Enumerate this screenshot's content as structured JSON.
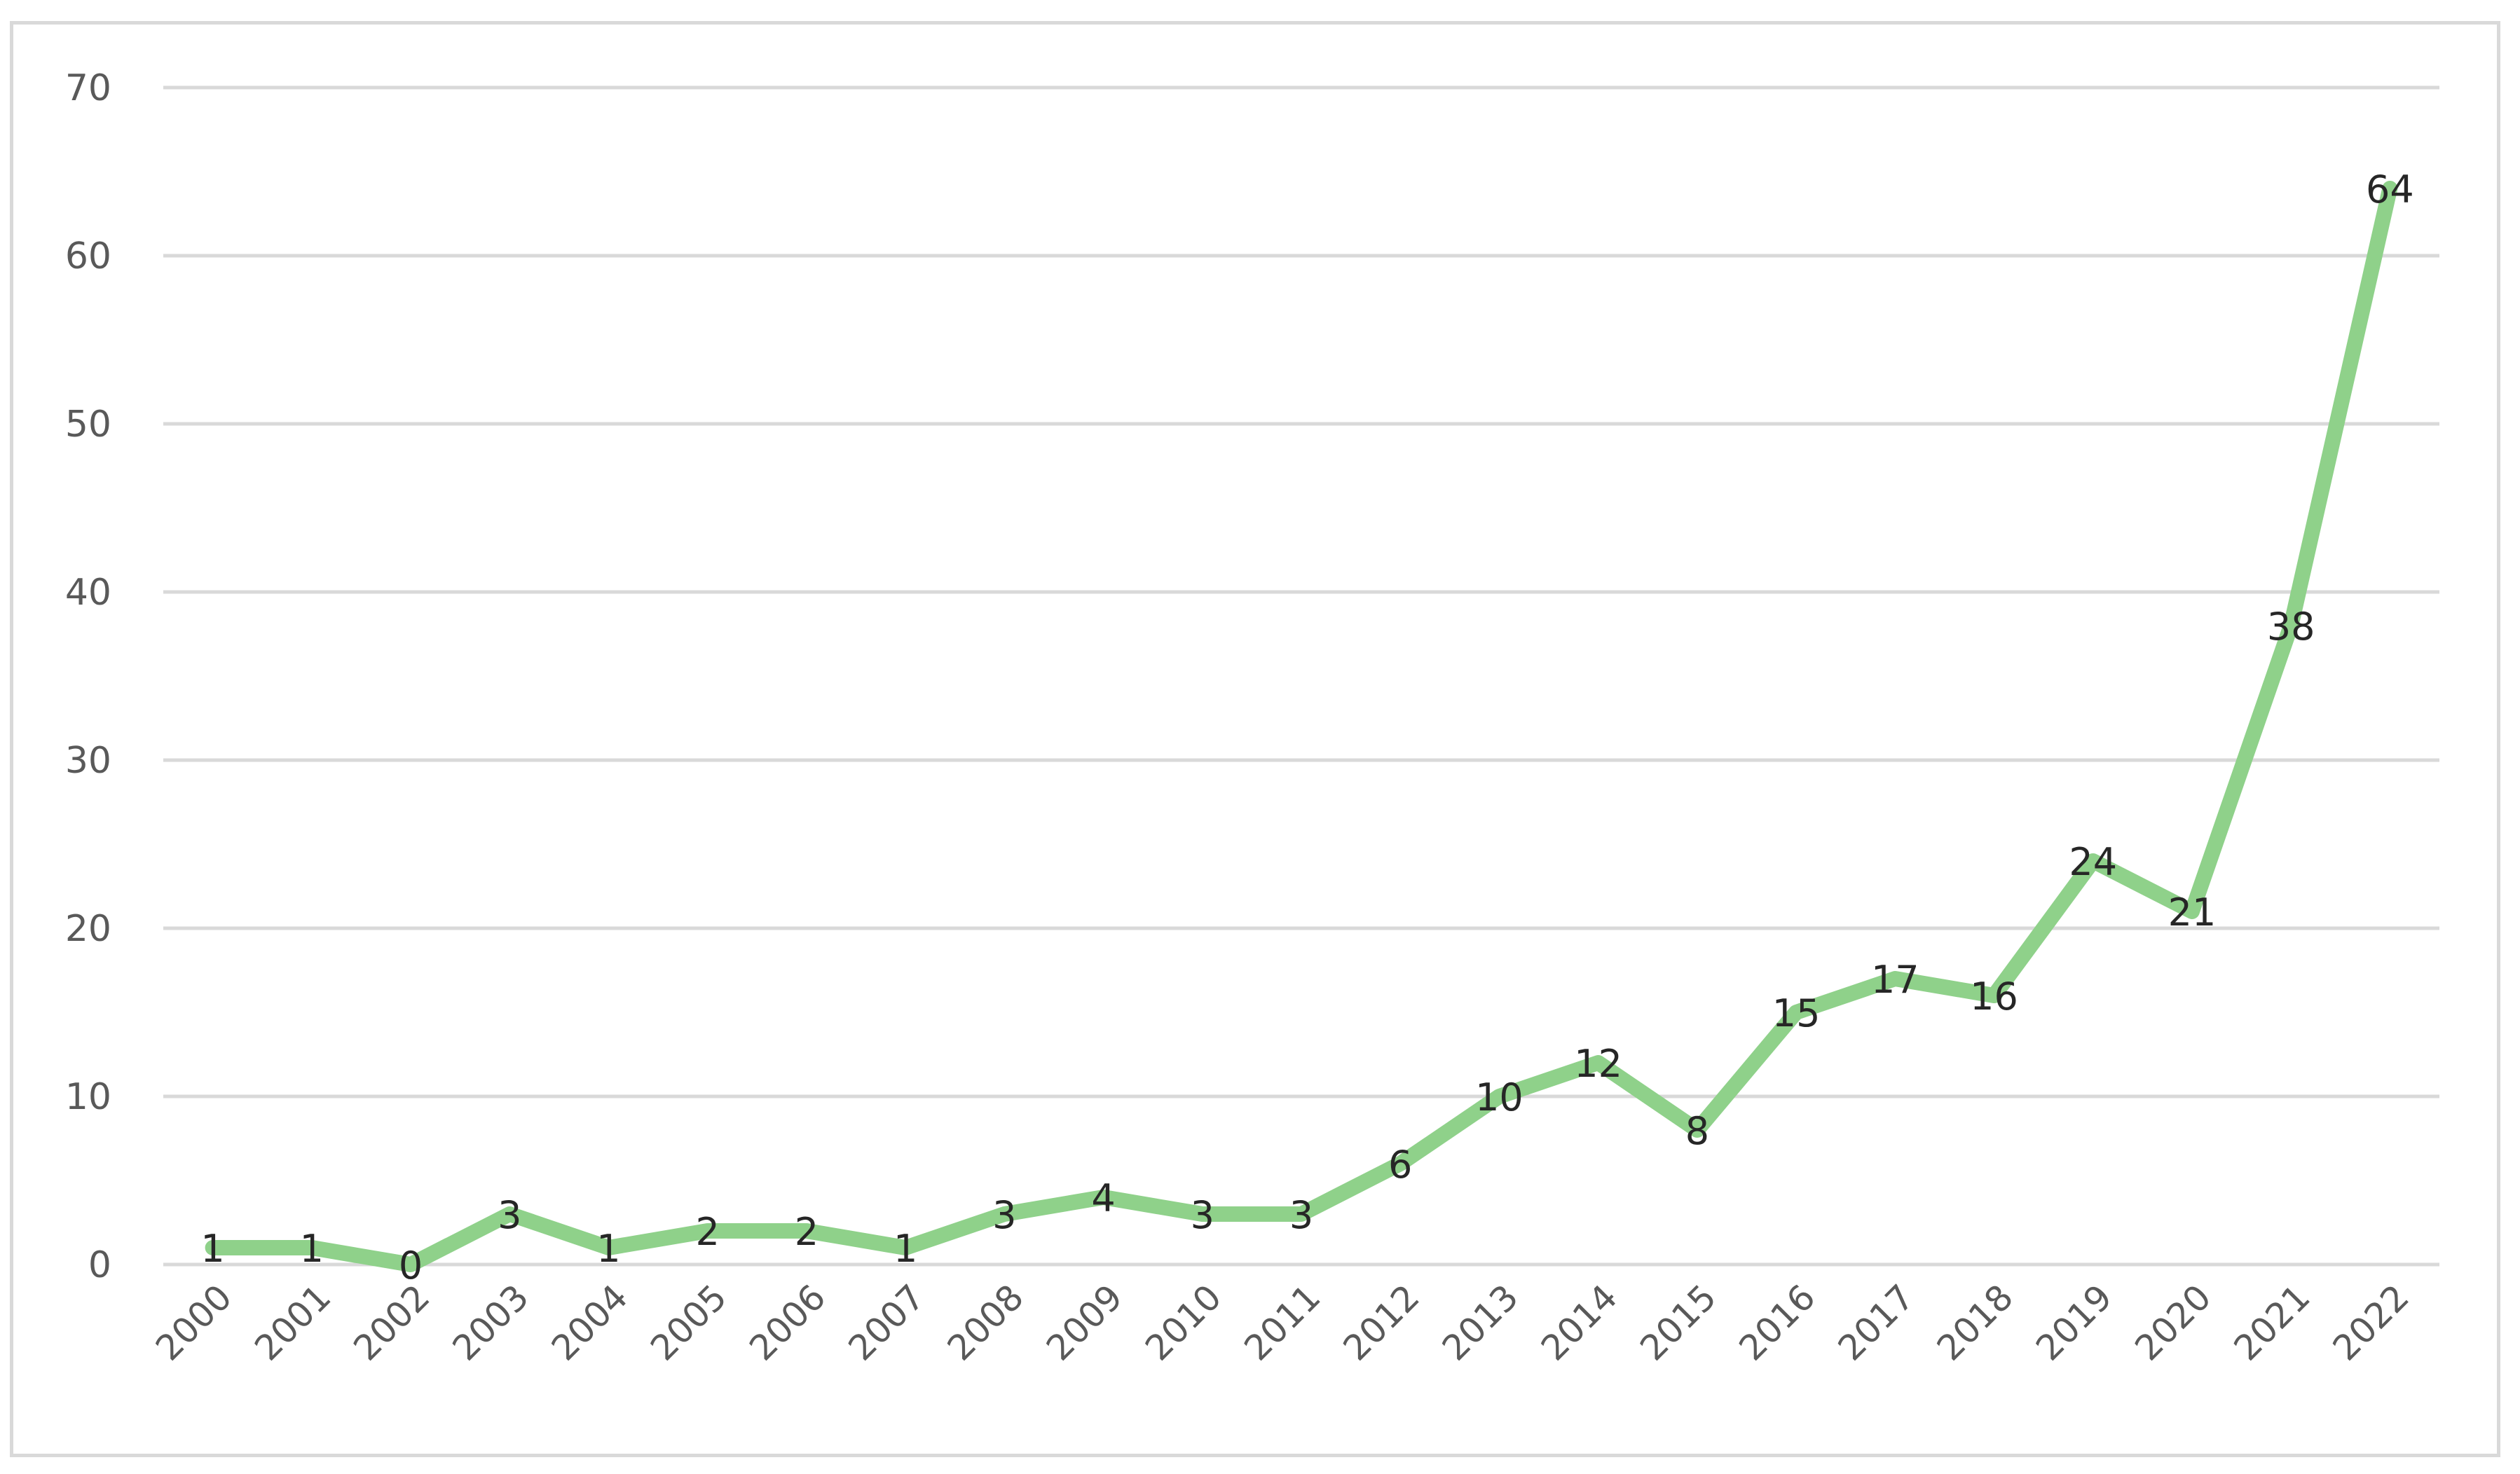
{
  "chart_data": {
    "type": "line",
    "title": "",
    "xlabel": "",
    "ylabel": "",
    "categories": [
      "2000",
      "2001",
      "2002",
      "2003",
      "2004",
      "2005",
      "2006",
      "2007",
      "2008",
      "2009",
      "2010",
      "2011",
      "2012",
      "2013",
      "2014",
      "2015",
      "2016",
      "2017",
      "2018",
      "2019",
      "2020",
      "2021",
      "2022"
    ],
    "series": [
      {
        "values": [
          1,
          1,
          0,
          3,
          1,
          2,
          2,
          1,
          3,
          4,
          3,
          3,
          6,
          10,
          12,
          8,
          15,
          17,
          16,
          24,
          21,
          38,
          64
        ]
      }
    ],
    "ylim": [
      0,
      70
    ],
    "yticks": [
      "0",
      "10",
      "20",
      "30",
      "40",
      "50",
      "60",
      "70"
    ],
    "grid": true,
    "legend": "none",
    "data_labels": true,
    "colors": {
      "line": "#8fd18a",
      "grid": "#d9d9d9",
      "tick_text": "#595959",
      "label_text": "#262626",
      "frame": "#d9d9d9"
    }
  }
}
